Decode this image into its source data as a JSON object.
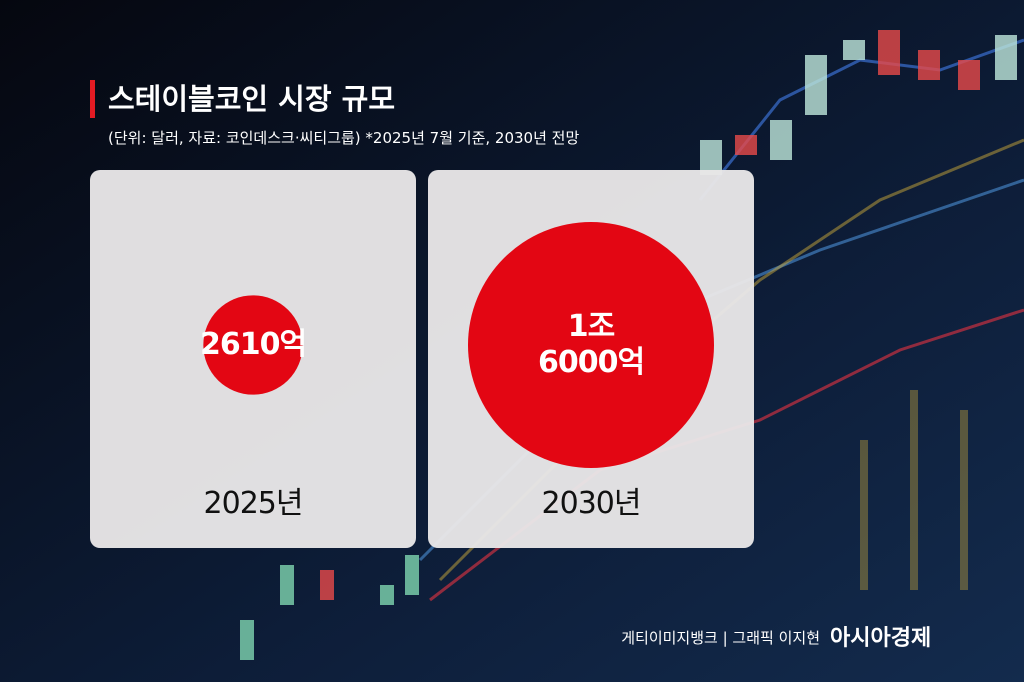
{
  "chart_data": {
    "type": "bubble",
    "title": "스테이블코인 시장 규모",
    "subtitle": "(단위: 달러, 자료: 코인데스크·씨티그룹) *2025년 7월 기준, 2030년 전망",
    "categories": [
      "2025년",
      "2030년"
    ],
    "values": [
      2610,
      16000
    ],
    "value_labels": [
      "2610억",
      "1조\n6000억"
    ],
    "color": "#e30613",
    "credit": "게티이미지뱅크 | 그래픽 이지현",
    "publisher": "아시아경제"
  }
}
